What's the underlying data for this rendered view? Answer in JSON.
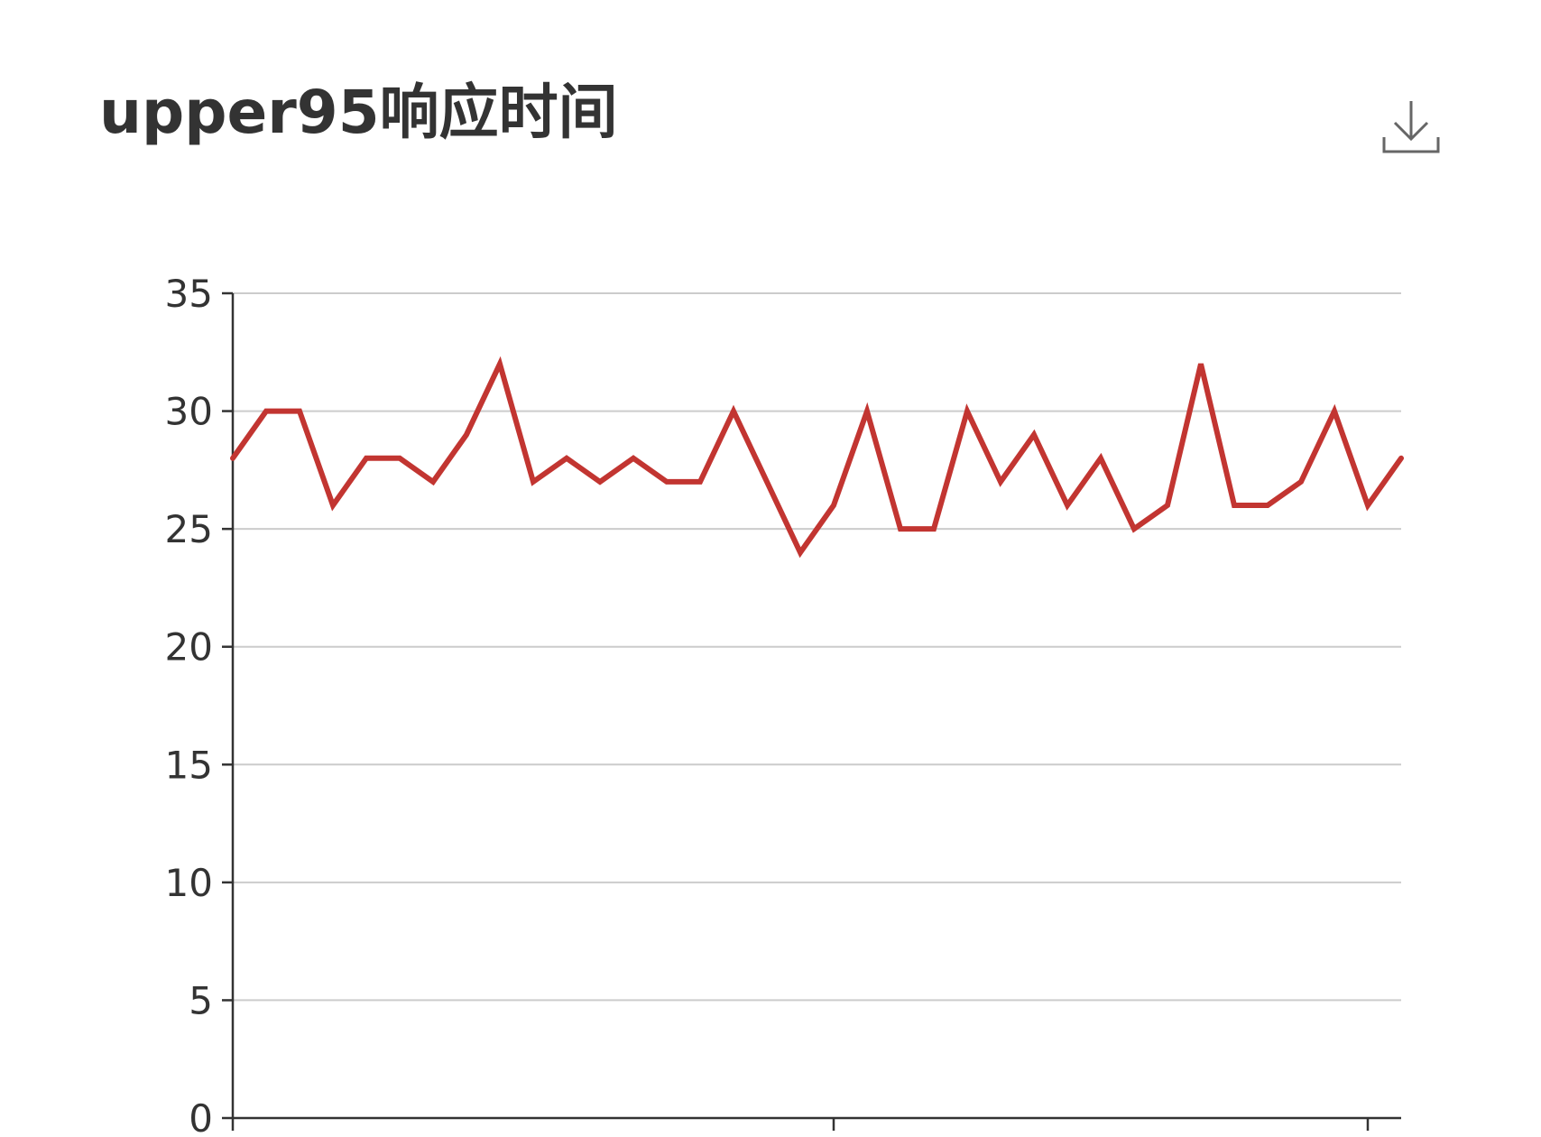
{
  "chart_data": {
    "type": "line",
    "title": "upper95响应时间",
    "ylim": [
      0,
      35
    ],
    "yticks": [
      "0",
      "5",
      "10",
      "15",
      "20",
      "25",
      "30",
      "35"
    ],
    "grid": true,
    "series": [
      {
        "color": "#c23531",
        "values": [
          28,
          30,
          30,
          26,
          28,
          28,
          27,
          29,
          32,
          27,
          28,
          27,
          28,
          27,
          27,
          30,
          27,
          24,
          26,
          30,
          25,
          25,
          30,
          27,
          29,
          26,
          28,
          25,
          26,
          32,
          26,
          26,
          27,
          30,
          26,
          28
        ]
      }
    ]
  },
  "toolbar": {
    "download_icon": "download-icon"
  },
  "colors": {
    "line": "#c23531",
    "axis": "#333333",
    "grid": "#cccccc",
    "title": "#333333"
  }
}
